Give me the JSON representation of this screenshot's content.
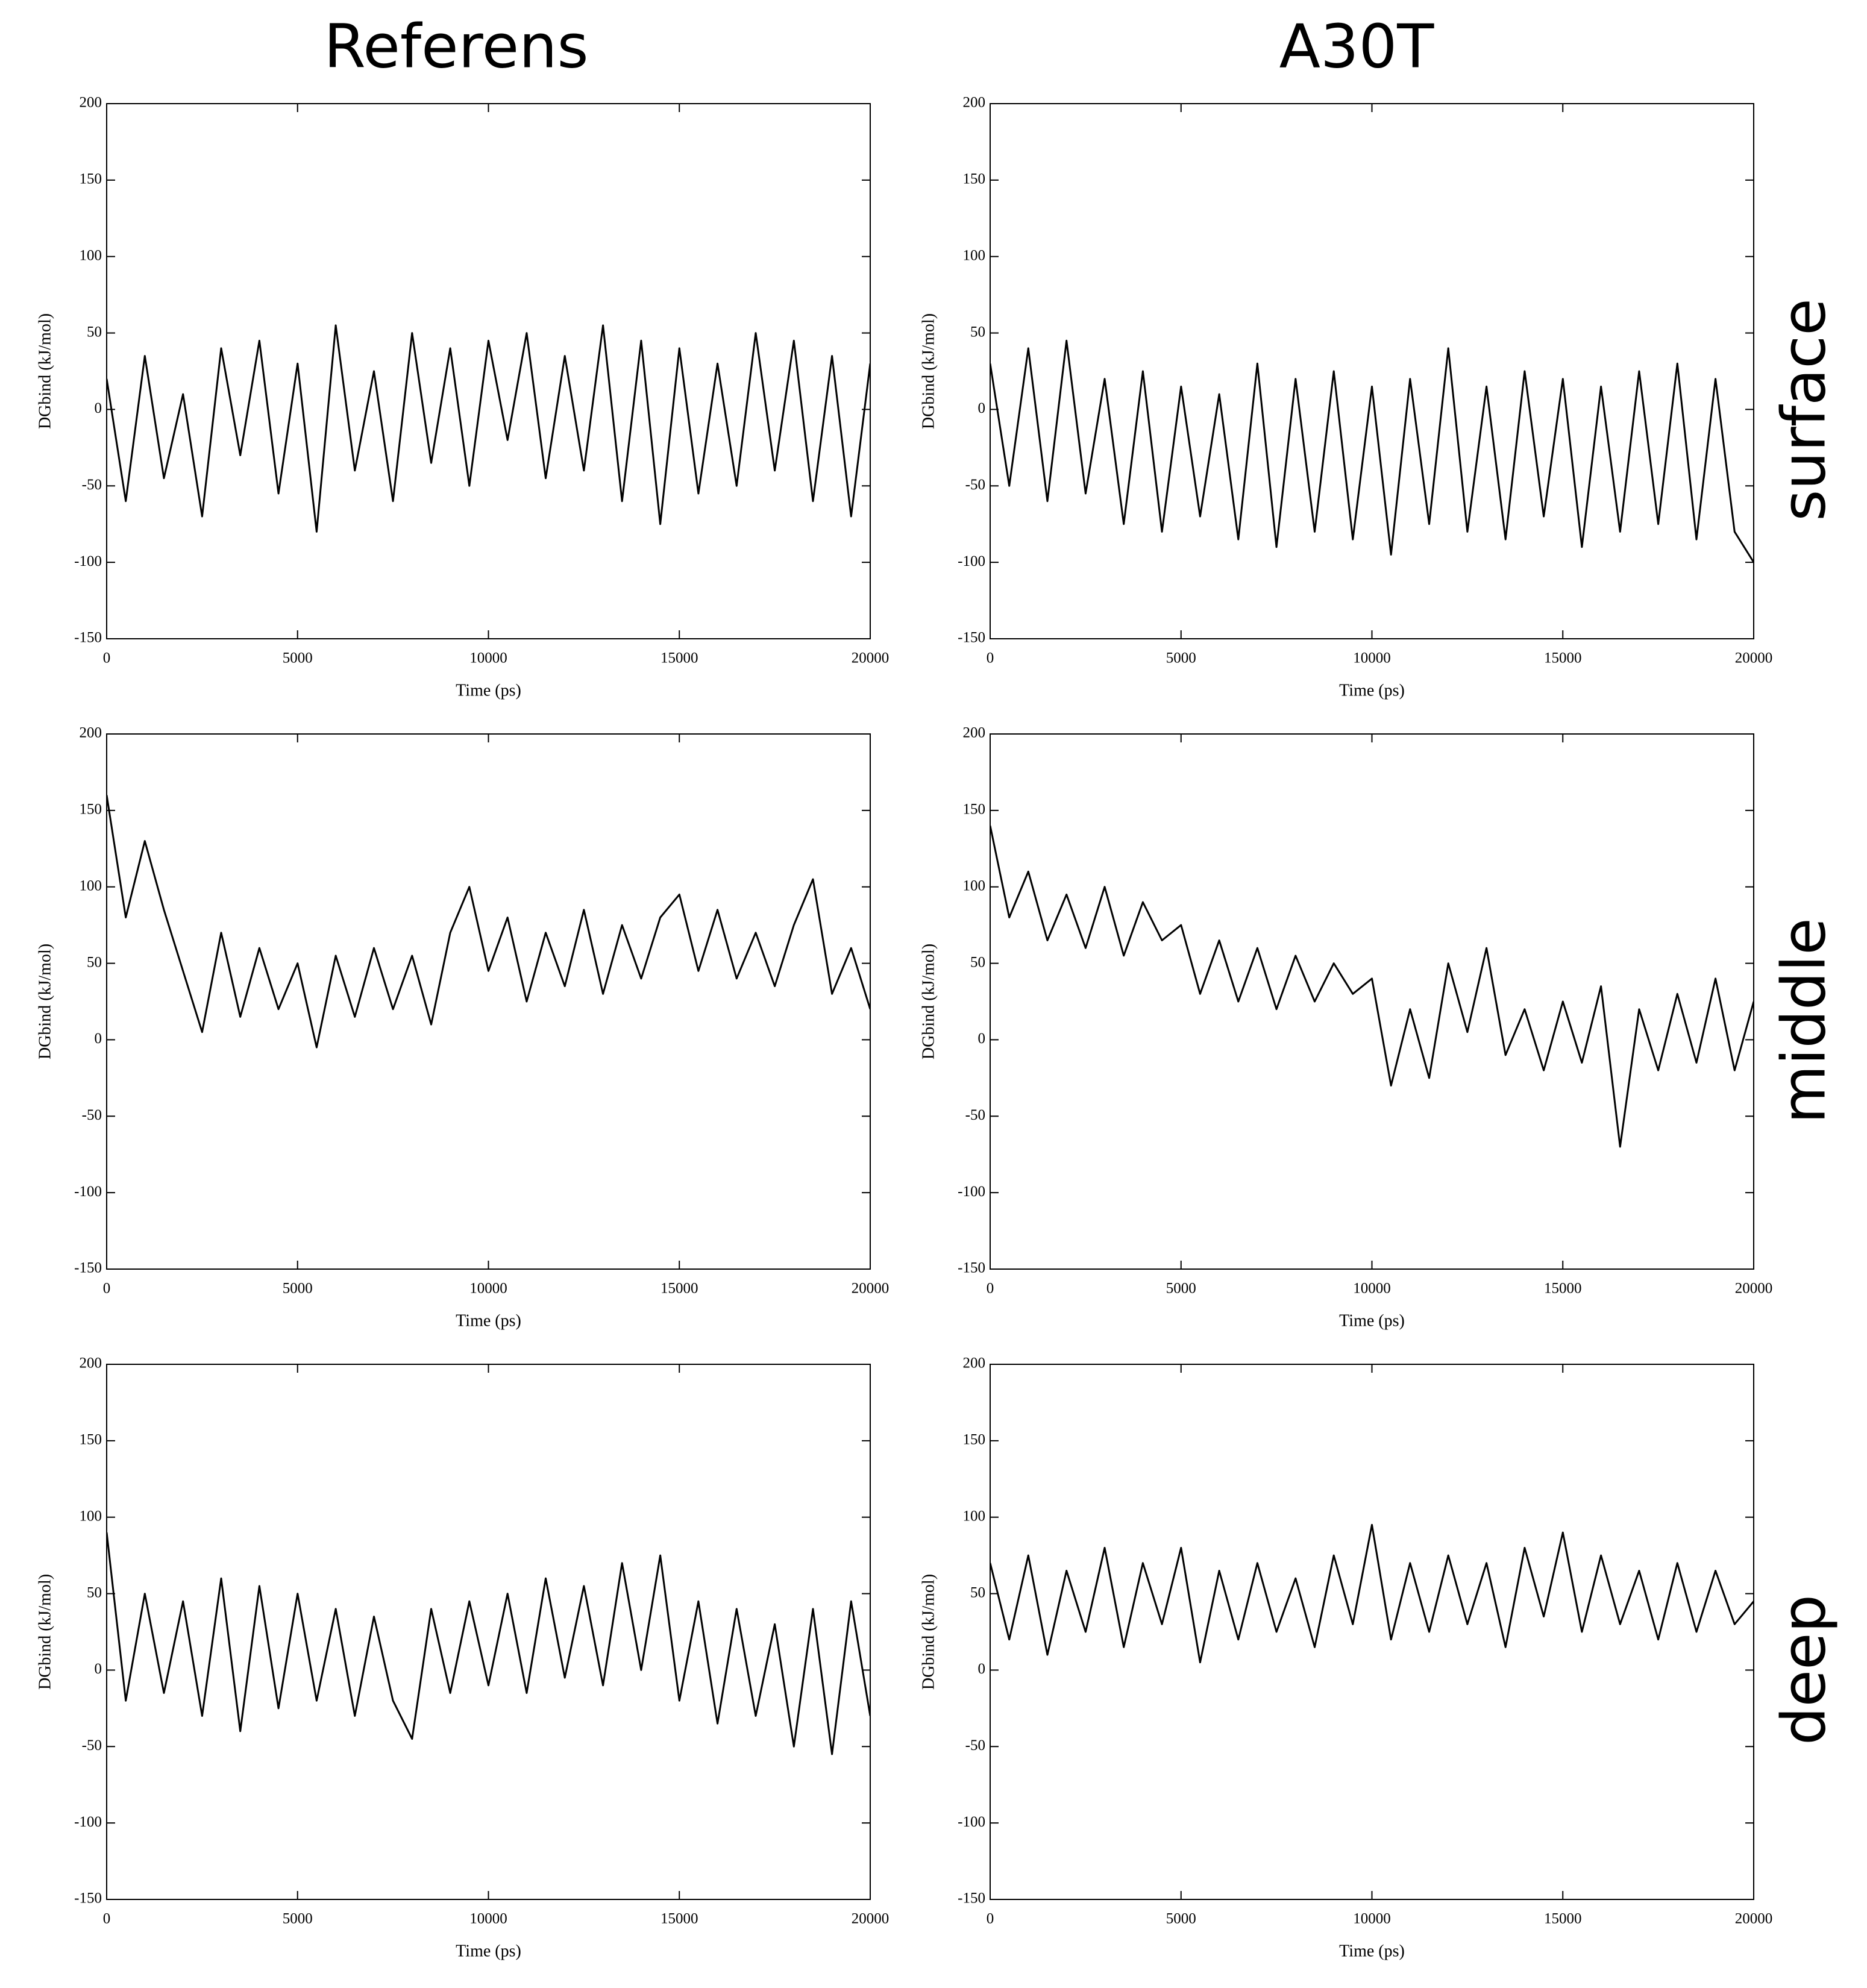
{
  "panel_labels": {
    "columns": [
      "Referens",
      "A30T"
    ],
    "rows": [
      "surface",
      "middle",
      "deep"
    ]
  },
  "chart_data": [
    {
      "type": "line",
      "xlabel": "Time (ps)",
      "ylabel": "DGbind (kJ/mol)",
      "color": "#000000",
      "x": [
        0,
        500,
        1000,
        1500,
        2000,
        2500,
        3000,
        3500,
        4000,
        4500,
        5000,
        5500,
        6000,
        6500,
        7000,
        7500,
        8000,
        8500,
        9000,
        9500,
        10000,
        10500,
        11000,
        11500,
        12000,
        12500,
        13000,
        13500,
        14000,
        14500,
        15000,
        15500,
        16000,
        16500,
        17000,
        17500,
        18000,
        18500,
        19000,
        19500,
        20000
      ],
      "values": [
        20,
        -60,
        35,
        -45,
        10,
        -70,
        40,
        -30,
        45,
        -55,
        30,
        -80,
        55,
        -40,
        25,
        -60,
        50,
        -35,
        40,
        -50,
        45,
        -20,
        50,
        -45,
        35,
        -40,
        55,
        -60,
        45,
        -75,
        40,
        -55,
        30,
        -50,
        50,
        -40,
        45,
        -60,
        35,
        -70,
        30
      ],
      "xlim": [
        0,
        20000
      ],
      "ylim": [
        -150,
        200
      ],
      "xticks": [
        0,
        5000,
        10000,
        15000,
        20000
      ],
      "yticks": [
        -150,
        -100,
        -50,
        0,
        50,
        100,
        150,
        200
      ]
    },
    {
      "type": "line",
      "xlabel": "Time (ps)",
      "ylabel": "DGbind (kJ/mol)",
      "color": "#000000",
      "x": [
        0,
        500,
        1000,
        1500,
        2000,
        2500,
        3000,
        3500,
        4000,
        4500,
        5000,
        5500,
        6000,
        6500,
        7000,
        7500,
        8000,
        8500,
        9000,
        9500,
        10000,
        10500,
        11000,
        11500,
        12000,
        12500,
        13000,
        13500,
        14000,
        14500,
        15000,
        15500,
        16000,
        16500,
        17000,
        17500,
        18000,
        18500,
        19000,
        19500,
        20000
      ],
      "values": [
        30,
        -50,
        40,
        -60,
        45,
        -55,
        20,
        -75,
        25,
        -80,
        15,
        -70,
        10,
        -85,
        30,
        -90,
        20,
        -80,
        25,
        -85,
        15,
        -95,
        20,
        -75,
        40,
        -80,
        15,
        -85,
        25,
        -70,
        20,
        -90,
        15,
        -80,
        25,
        -75,
        30,
        -85,
        20,
        -80,
        -100
      ],
      "xlim": [
        0,
        20000
      ],
      "ylim": [
        -150,
        200
      ],
      "xticks": [
        0,
        5000,
        10000,
        15000,
        20000
      ],
      "yticks": [
        -150,
        -100,
        -50,
        0,
        50,
        100,
        150,
        200
      ]
    },
    {
      "type": "line",
      "xlabel": "Time (ps)",
      "ylabel": "DGbind (kJ/mol)",
      "color": "#000000",
      "x": [
        0,
        500,
        1000,
        1500,
        2000,
        2500,
        3000,
        3500,
        4000,
        4500,
        5000,
        5500,
        6000,
        6500,
        7000,
        7500,
        8000,
        8500,
        9000,
        9500,
        10000,
        10500,
        11000,
        11500,
        12000,
        12500,
        13000,
        13500,
        14000,
        14500,
        15000,
        15500,
        16000,
        16500,
        17000,
        17500,
        18000,
        18500,
        19000,
        19500,
        20000
      ],
      "values": [
        160,
        80,
        130,
        85,
        45,
        5,
        70,
        15,
        60,
        20,
        50,
        -5,
        55,
        15,
        60,
        20,
        55,
        10,
        70,
        100,
        45,
        80,
        25,
        70,
        35,
        85,
        30,
        75,
        40,
        80,
        95,
        45,
        85,
        40,
        70,
        35,
        75,
        105,
        30,
        60,
        20
      ],
      "xlim": [
        0,
        20000
      ],
      "ylim": [
        -150,
        200
      ],
      "xticks": [
        0,
        5000,
        10000,
        15000,
        20000
      ],
      "yticks": [
        -150,
        -100,
        -50,
        0,
        50,
        100,
        150,
        200
      ]
    },
    {
      "type": "line",
      "xlabel": "Time (ps)",
      "ylabel": "DGbind (kJ/mol)",
      "color": "#000000",
      "x": [
        0,
        500,
        1000,
        1500,
        2000,
        2500,
        3000,
        3500,
        4000,
        4500,
        5000,
        5500,
        6000,
        6500,
        7000,
        7500,
        8000,
        8500,
        9000,
        9500,
        10000,
        10500,
        11000,
        11500,
        12000,
        12500,
        13000,
        13500,
        14000,
        14500,
        15000,
        15500,
        16000,
        16500,
        17000,
        17500,
        18000,
        18500,
        19000,
        19500,
        20000
      ],
      "values": [
        140,
        80,
        110,
        65,
        95,
        60,
        100,
        55,
        90,
        65,
        75,
        30,
        65,
        25,
        60,
        20,
        55,
        25,
        50,
        30,
        40,
        -30,
        20,
        -25,
        50,
        5,
        60,
        -10,
        20,
        -20,
        25,
        -15,
        35,
        -70,
        20,
        -20,
        30,
        -15,
        40,
        -20,
        25
      ],
      "xlim": [
        0,
        20000
      ],
      "ylim": [
        -150,
        200
      ],
      "xticks": [
        0,
        5000,
        10000,
        15000,
        20000
      ],
      "yticks": [
        -150,
        -100,
        -50,
        0,
        50,
        100,
        150,
        200
      ]
    },
    {
      "type": "line",
      "xlabel": "Time (ps)",
      "ylabel": "DGbind (kJ/mol)",
      "color": "#000000",
      "x": [
        0,
        500,
        1000,
        1500,
        2000,
        2500,
        3000,
        3500,
        4000,
        4500,
        5000,
        5500,
        6000,
        6500,
        7000,
        7500,
        8000,
        8500,
        9000,
        9500,
        10000,
        10500,
        11000,
        11500,
        12000,
        12500,
        13000,
        13500,
        14000,
        14500,
        15000,
        15500,
        16000,
        16500,
        17000,
        17500,
        18000,
        18500,
        19000,
        19500,
        20000
      ],
      "values": [
        90,
        -20,
        50,
        -15,
        45,
        -30,
        60,
        -40,
        55,
        -25,
        50,
        -20,
        40,
        -30,
        35,
        -20,
        -45,
        40,
        -15,
        45,
        -10,
        50,
        -15,
        60,
        -5,
        55,
        -10,
        70,
        0,
        75,
        -20,
        45,
        -35,
        40,
        -30,
        30,
        -50,
        40,
        -55,
        45,
        -30
      ],
      "xlim": [
        0,
        20000
      ],
      "ylim": [
        -150,
        200
      ],
      "xticks": [
        0,
        5000,
        10000,
        15000,
        20000
      ],
      "yticks": [
        -150,
        -100,
        -50,
        0,
        50,
        100,
        150,
        200
      ]
    },
    {
      "type": "line",
      "xlabel": "Time (ps)",
      "ylabel": "DGbind (kJ/mol)",
      "color": "#000000",
      "x": [
        0,
        500,
        1000,
        1500,
        2000,
        2500,
        3000,
        3500,
        4000,
        4500,
        5000,
        5500,
        6000,
        6500,
        7000,
        7500,
        8000,
        8500,
        9000,
        9500,
        10000,
        10500,
        11000,
        11500,
        12000,
        12500,
        13000,
        13500,
        14000,
        14500,
        15000,
        15500,
        16000,
        16500,
        17000,
        17500,
        18000,
        18500,
        19000,
        19500,
        20000
      ],
      "values": [
        70,
        20,
        75,
        10,
        65,
        25,
        80,
        15,
        70,
        30,
        80,
        5,
        65,
        20,
        70,
        25,
        60,
        15,
        75,
        30,
        95,
        20,
        70,
        25,
        75,
        30,
        70,
        15,
        80,
        35,
        90,
        25,
        75,
        30,
        65,
        20,
        70,
        25,
        65,
        30,
        45
      ],
      "xlim": [
        0,
        20000
      ],
      "ylim": [
        -150,
        200
      ],
      "xticks": [
        0,
        5000,
        10000,
        15000,
        20000
      ],
      "yticks": [
        -150,
        -100,
        -50,
        0,
        50,
        100,
        150,
        200
      ]
    }
  ]
}
